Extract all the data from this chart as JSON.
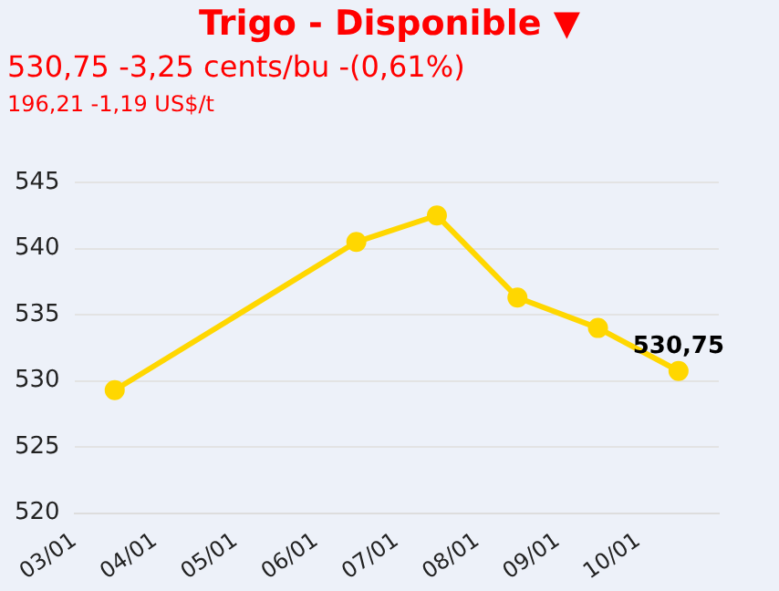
{
  "chart_data": {
    "type": "line",
    "title": "Trigo - Disponible ▼",
    "subtitle": "530,75 -3,25 cents/bu -(0,61%)",
    "annotations": [
      "196,21 -1,19 US$/t"
    ],
    "x": [
      "--01-03T12:00",
      "--01-06T12:00",
      "--01-07T12:00",
      "--01-08T12:00",
      "--01-09T12:00",
      "--01-10T12:00"
    ],
    "series": [
      {
        "color": "#ffd700",
        "values": [
          529.3,
          540.5,
          542.5,
          536.3,
          534.0,
          530.75
        ],
        "value_labels": [
          null,
          null,
          null,
          null,
          null,
          "530,75"
        ]
      }
    ],
    "xlim": [
      "--01-03",
      "--01-11"
    ],
    "xticks": [
      {
        "value": "--01-03",
        "label": "03/01"
      },
      {
        "value": "--01-04",
        "label": "04/01"
      },
      {
        "value": "--01-05",
        "label": "05/01"
      },
      {
        "value": "--01-06",
        "label": "06/01"
      },
      {
        "value": "--01-07",
        "label": "07/01"
      },
      {
        "value": "--01-08",
        "label": "08/01"
      },
      {
        "value": "--01-09",
        "label": "09/01"
      },
      {
        "value": "--01-10",
        "label": "10/01"
      }
    ],
    "ylim": [
      520,
      545
    ],
    "yticks": [
      520,
      525,
      530,
      535,
      540,
      545
    ],
    "grid": "y",
    "marker": "circle",
    "line_style": "solid",
    "legend": false
  }
}
